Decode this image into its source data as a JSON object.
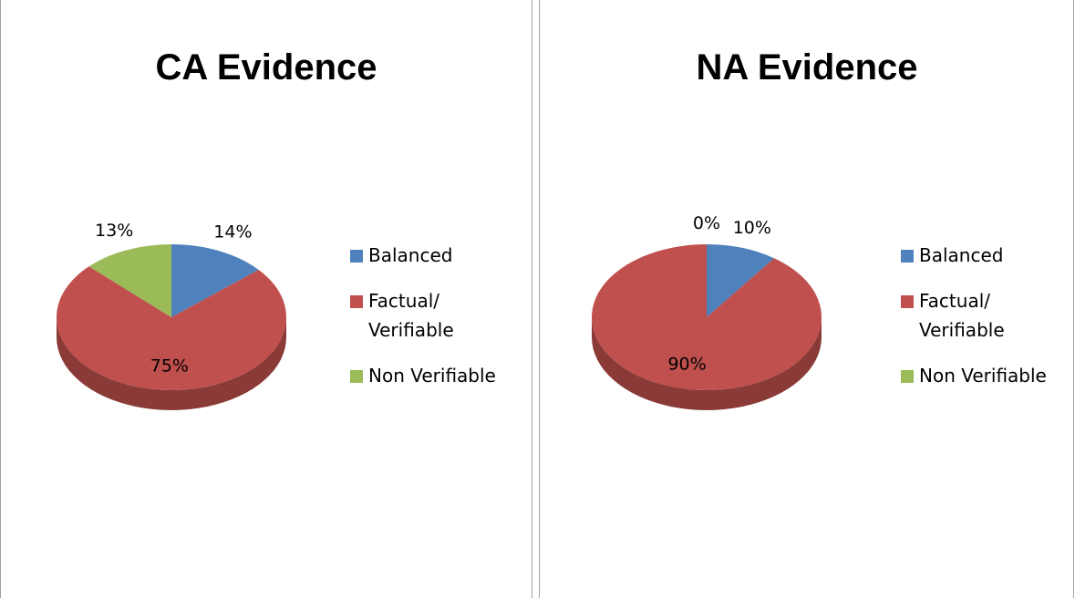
{
  "chart_data": [
    {
      "type": "pie",
      "title": "CA Evidence",
      "categories": [
        "Balanced",
        "Factual/ Verifiable",
        "Non Verifiable"
      ],
      "values": [
        14,
        75,
        13
      ],
      "value_labels": [
        "14%",
        "75%",
        "13%"
      ],
      "colors": [
        "#4f81bd",
        "#c0504d",
        "#9bbb59"
      ],
      "legend": "right"
    },
    {
      "type": "pie",
      "title": "NA Evidence",
      "categories": [
        "Balanced",
        "Factual/ Verifiable",
        "Non Verifiable"
      ],
      "values": [
        10,
        90,
        0
      ],
      "value_labels": [
        "10%",
        "90%",
        "0%"
      ],
      "colors": [
        "#4f81bd",
        "#c0504d",
        "#9bbb59"
      ],
      "legend": "right"
    }
  ]
}
